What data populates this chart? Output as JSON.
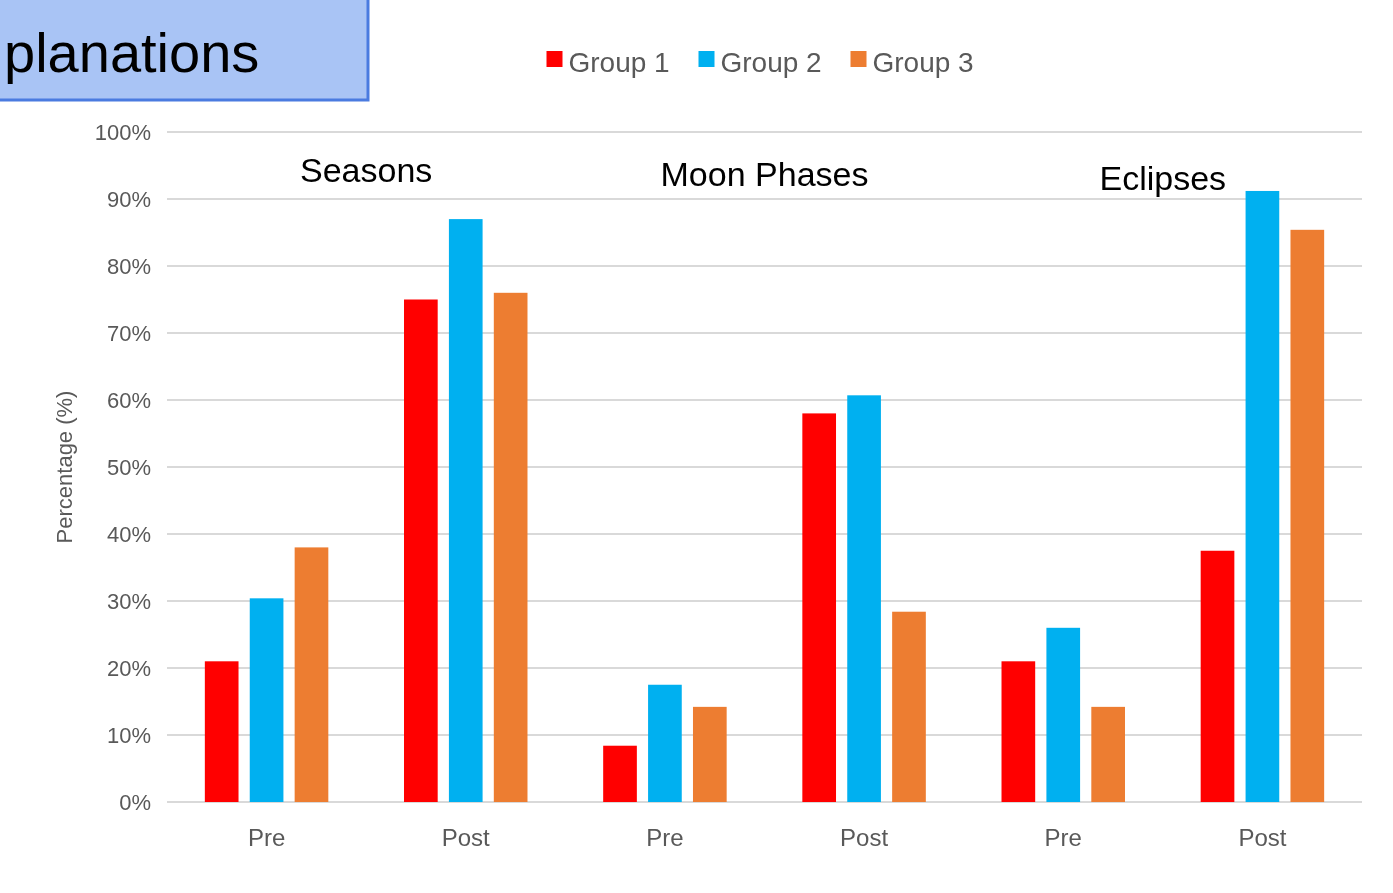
{
  "chart_data": {
    "type": "bar",
    "title": "planations",
    "ylabel": "Percentage (%)",
    "categories": [
      "Pre",
      "Post",
      "Pre",
      "Post",
      "Pre",
      "Post"
    ],
    "series": [
      {
        "name": "Group 1",
        "color": "#ff0000",
        "values": [
          21,
          75,
          8.4,
          58,
          21,
          37.5
        ]
      },
      {
        "name": "Group 2",
        "color": "#00b0f0",
        "values": [
          30.4,
          87,
          17.5,
          60.7,
          26,
          91.2
        ]
      },
      {
        "name": "Group 3",
        "color": "#ed7d31",
        "values": [
          38,
          76,
          14.2,
          28.4,
          14.2,
          85.4
        ]
      }
    ],
    "annotations": [
      "Seasons",
      "Moon Phases",
      "Eclipses"
    ],
    "ylim": [
      0,
      100
    ],
    "yticks": [
      {
        "value": 0,
        "label": "0%"
      },
      {
        "value": 10,
        "label": "10%"
      },
      {
        "value": 20,
        "label": "20%"
      },
      {
        "value": 30,
        "label": "30%"
      },
      {
        "value": 40,
        "label": "40%"
      },
      {
        "value": 50,
        "label": "50%"
      },
      {
        "value": 60,
        "label": "60%"
      },
      {
        "value": 70,
        "label": "70%"
      },
      {
        "value": 80,
        "label": "80%"
      },
      {
        "value": 90,
        "label": "90%"
      },
      {
        "value": 100,
        "label": "100%"
      }
    ],
    "grid": "y",
    "legend": "top"
  }
}
